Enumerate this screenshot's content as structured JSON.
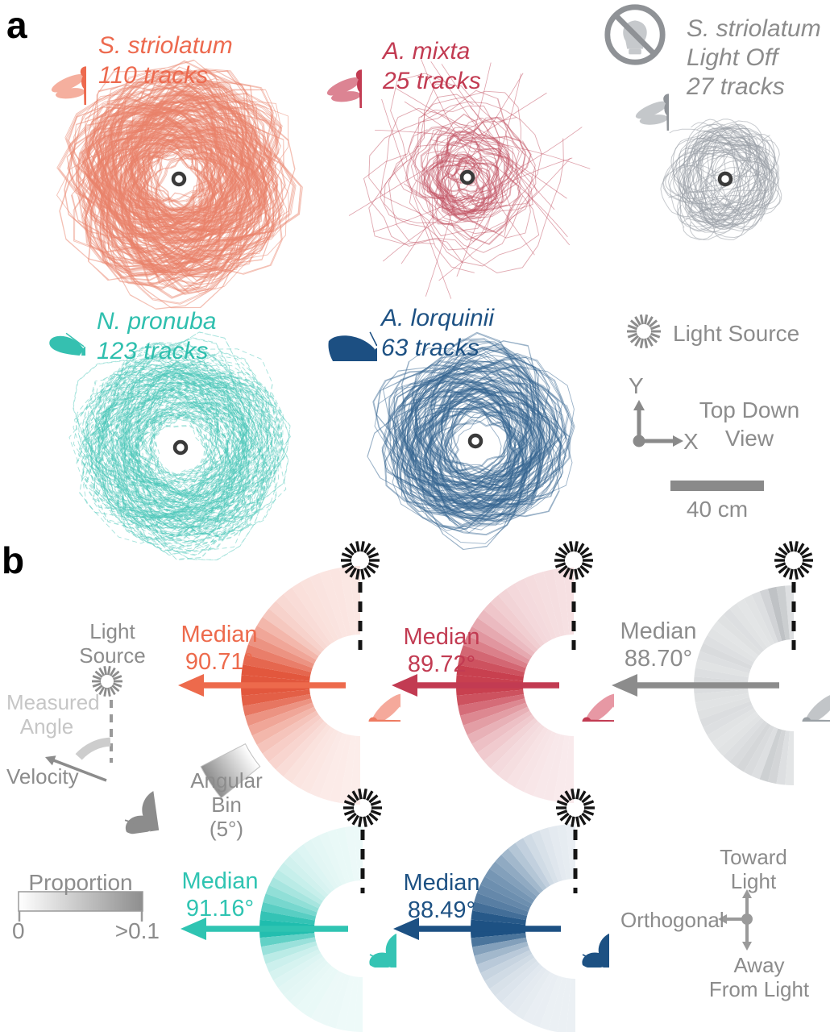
{
  "figure": {
    "panel_a_label": "a",
    "panel_b_label": "b"
  },
  "chart_data": {
    "type": "composite",
    "panel_a": {
      "description": "Top-down 2D flight tracks around a central light source",
      "plots": [
        {
          "species": "S. striolatum",
          "label": "S. striolatum\n110 tracks",
          "tracks_count": 110,
          "label_color": "#ed6a4f",
          "track_color": "#e9816a",
          "icon": "dragonfly",
          "icon_wing": "#f5af9e",
          "icon_body": "#ed6a4f"
        },
        {
          "species": "A. mixta",
          "label": "A. mixta\n25 tracks",
          "tracks_count": 25,
          "label_color": "#c23b52",
          "track_color": "#c25162",
          "icon": "dragonfly",
          "icon_wing": "#dc8493",
          "icon_body": "#c23b52"
        },
        {
          "species": "S. striolatum (Light Off)",
          "label": "S. striolatum\nLight Off\n27 tracks",
          "tracks_count": 27,
          "label_color": "#8c8c8c",
          "track_color": "#9ba1a8",
          "icon": "dragonfly-no-light",
          "icon_wing": "#c4c7ca",
          "icon_body": "#8f9398"
        },
        {
          "species": "N. pronuba",
          "label": "N. pronuba\n123 tracks",
          "tracks_count": 123,
          "label_color": "#2fbfae",
          "track_color": "#4cc8ba",
          "icon": "moth",
          "icon_wing": "#35c0b0",
          "icon_body": "#35c0b0"
        },
        {
          "species": "A. lorquinii",
          "label": "A. lorquinii\n63 tracks",
          "tracks_count": 63,
          "label_color": "#1d5183",
          "track_color": "#33638f",
          "icon": "moth-big",
          "icon_wing": "#1c4f82",
          "icon_body": "#1c4f82"
        }
      ],
      "legend": {
        "light_source": "Light Source",
        "top_down": "Top Down\nView",
        "scale_label": "40 cm",
        "axis_x": "X",
        "axis_y": "Y"
      }
    },
    "panel_b": {
      "bin_width_deg": 5,
      "angle_domain_deg": [
        0,
        180
      ],
      "proportion_scale": {
        "title": "Proportion",
        "min_label": "0",
        "max_label": ">0.1",
        "max": 0.1
      },
      "legend": {
        "light_source": "Light\nSource",
        "measured_angle": "Measured\nAngle",
        "velocity": "Velocity",
        "angular_bin": "Angular Bin\n(5°)",
        "toward": "Toward\nLight",
        "orthogonal": "Orthogonal",
        "away": "Away\nFrom Light"
      },
      "fans": [
        {
          "species": "S. striolatum",
          "median_title": "Median",
          "median_label": "90.71°",
          "median_deg": 90.71,
          "color": "#e2573d",
          "accent": "#ed6a4c",
          "insect": "dragonfly",
          "insect_wing": "#f5a99b",
          "insect_body": "#ee7a60",
          "proportions": [
            0.012,
            0.012,
            0.013,
            0.013,
            0.014,
            0.015,
            0.016,
            0.018,
            0.02,
            0.024,
            0.03,
            0.04,
            0.05,
            0.062,
            0.075,
            0.09,
            0.1,
            0.105,
            0.105,
            0.095,
            0.08,
            0.062,
            0.05,
            0.04,
            0.032,
            0.026,
            0.022,
            0.018,
            0.015,
            0.013,
            0.012,
            0.011,
            0.01,
            0.01,
            0.009,
            0.009
          ]
        },
        {
          "species": "A. mixta",
          "median_title": "Median",
          "median_label": "89.72°",
          "median_deg": 89.72,
          "color": "#c8404f",
          "accent": "#c23b52",
          "insect": "dragonfly",
          "insect_wing": "#e798a4",
          "insect_body": "#c23b52",
          "proportions": [
            0.014,
            0.014,
            0.015,
            0.015,
            0.016,
            0.017,
            0.018,
            0.02,
            0.023,
            0.027,
            0.033,
            0.042,
            0.052,
            0.064,
            0.078,
            0.09,
            0.1,
            0.105,
            0.1,
            0.09,
            0.075,
            0.06,
            0.048,
            0.038,
            0.03,
            0.025,
            0.02,
            0.017,
            0.015,
            0.013,
            0.012,
            0.011,
            0.01,
            0.01,
            0.009,
            0.009
          ]
        },
        {
          "species": "S. striolatum (Light Off)",
          "median_title": "Median",
          "median_label": "88.70°",
          "median_deg": 88.7,
          "color": "#989ea3",
          "accent": "#8c8c8c",
          "insect": "dragonfly",
          "insect_wing": "#c2c5c8",
          "insect_body": "#9aa0a5",
          "proportions": [
            0.03,
            0.048,
            0.06,
            0.042,
            0.03,
            0.026,
            0.024,
            0.026,
            0.03,
            0.028,
            0.024,
            0.026,
            0.03,
            0.034,
            0.03,
            0.026,
            0.03,
            0.034,
            0.032,
            0.028,
            0.026,
            0.028,
            0.032,
            0.03,
            0.026,
            0.024,
            0.026,
            0.03,
            0.034,
            0.038,
            0.034,
            0.03,
            0.046,
            0.04,
            0.03,
            0.024
          ]
        },
        {
          "species": "N. pronuba",
          "median_title": "Median",
          "median_label": "91.16°",
          "median_deg": 91.16,
          "color": "#1fbdae",
          "accent": "#2fc4b2",
          "insect": "moth",
          "insect_wing": "#35c4b4",
          "insect_body": "#35c4b4",
          "proportions": [
            0.007,
            0.007,
            0.008,
            0.008,
            0.009,
            0.01,
            0.011,
            0.013,
            0.015,
            0.018,
            0.022,
            0.028,
            0.036,
            0.046,
            0.058,
            0.072,
            0.09,
            0.105,
            0.098,
            0.068,
            0.042,
            0.028,
            0.02,
            0.016,
            0.013,
            0.011,
            0.01,
            0.009,
            0.008,
            0.008,
            0.007,
            0.007,
            0.007,
            0.006,
            0.006,
            0.006
          ]
        },
        {
          "species": "A. lorquinii",
          "median_title": "Median",
          "median_label": "88.49°",
          "median_deg": 88.49,
          "color": "#1d5183",
          "accent": "#1d5183",
          "insect": "moth",
          "insect_wing": "#1d5183",
          "insect_body": "#1d5183",
          "proportions": [
            0.008,
            0.009,
            0.01,
            0.012,
            0.015,
            0.018,
            0.024,
            0.03,
            0.038,
            0.046,
            0.052,
            0.058,
            0.062,
            0.066,
            0.072,
            0.082,
            0.095,
            0.105,
            0.1,
            0.078,
            0.052,
            0.038,
            0.028,
            0.022,
            0.018,
            0.015,
            0.013,
            0.011,
            0.01,
            0.009,
            0.008,
            0.008,
            0.007,
            0.007,
            0.007,
            0.007
          ]
        }
      ]
    }
  }
}
